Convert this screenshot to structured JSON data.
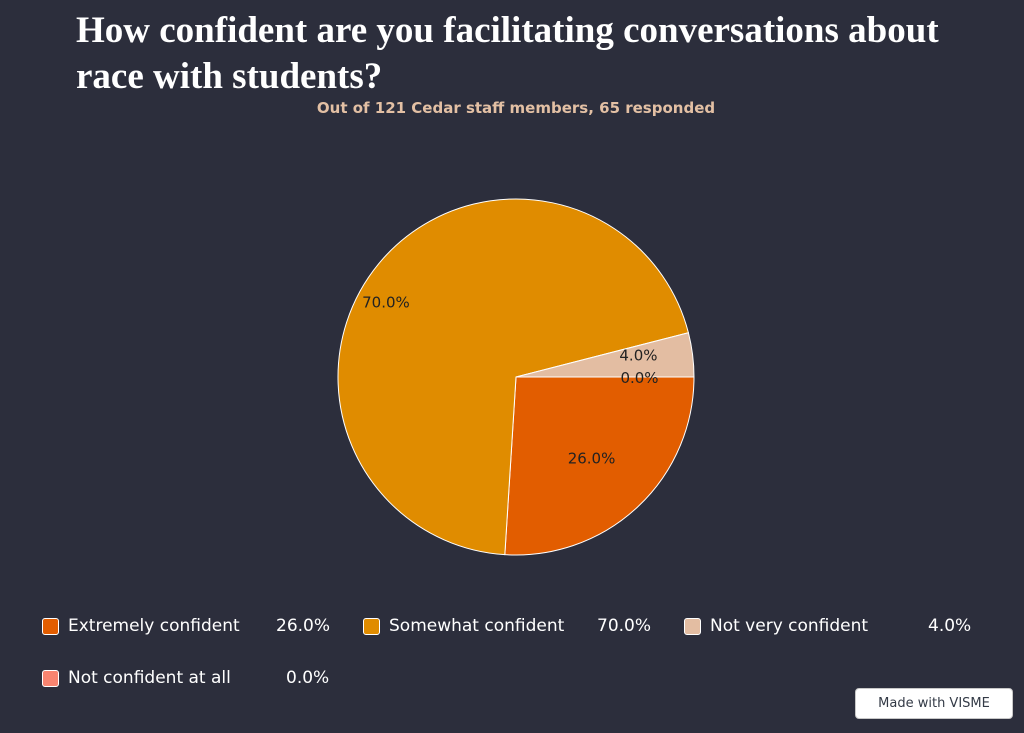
{
  "colors": {
    "background": "#2c2e3c"
  },
  "chart_data": {
    "type": "pie",
    "title": "How confident are you facilitating conversations about race with students?",
    "subtitle": "Out of 121 Cedar staff members, 65 responded",
    "categories": [
      "Extremely confident",
      "Somewhat confident",
      "Not very confident",
      "Not confident at all"
    ],
    "values": [
      26.0,
      70.0,
      4.0,
      0.0
    ],
    "value_labels": [
      "26.0%",
      "70.0%",
      "4.0%",
      "0.0%"
    ],
    "colors": [
      "#e25d00",
      "#e08c00",
      "#e3bda2",
      "#f88470"
    ],
    "legend_placement": "bottom"
  },
  "watermark": "Made with VISME"
}
